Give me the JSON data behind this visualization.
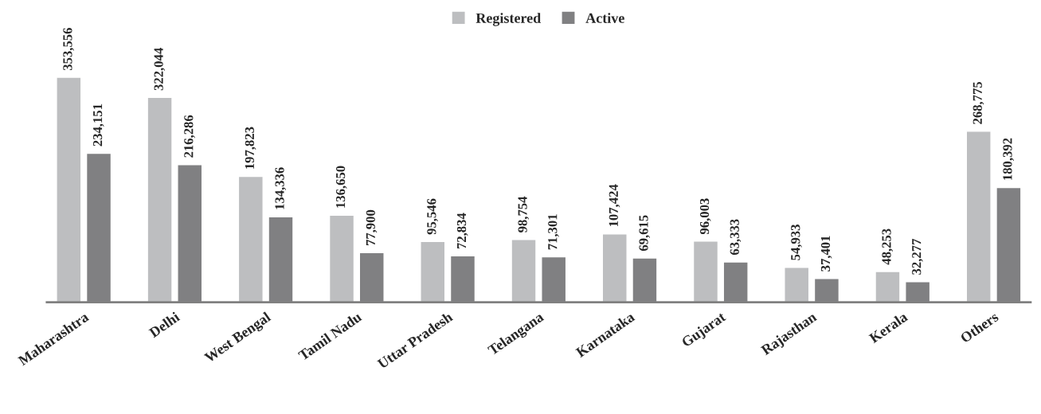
{
  "chart_data": {
    "type": "bar",
    "categories": [
      "Maharashtra",
      "Delhi",
      "West Bengal",
      "Tamil Nadu",
      "Uttar Pradesh",
      "Telangana",
      "Karnataka",
      "Gujarat",
      "Rajasthan",
      "Kerala",
      "Others"
    ],
    "series": [
      {
        "name": "Registered",
        "color": "#bdbec0",
        "values": [
          353556,
          322044,
          197823,
          136650,
          95546,
          98754,
          107424,
          96003,
          54933,
          48253,
          268775
        ],
        "value_labels": [
          "353,556",
          "322,044",
          "197,823",
          "136,650",
          "95,546",
          "98,754",
          "107,424",
          "96,003",
          "54,933",
          "48,253",
          "268,775"
        ]
      },
      {
        "name": "Active",
        "color": "#808082",
        "values": [
          234151,
          216286,
          134336,
          77900,
          72834,
          71301,
          69615,
          63333,
          37401,
          32277,
          180392
        ],
        "value_labels": [
          "234,151",
          "216,286",
          "134,336",
          "77,900",
          "72,834",
          "71,301",
          "69,615",
          "63,333",
          "37,401",
          "32,277",
          "180,392"
        ]
      }
    ],
    "legend": "top",
    "grid": false,
    "tick_labels": "x"
  }
}
